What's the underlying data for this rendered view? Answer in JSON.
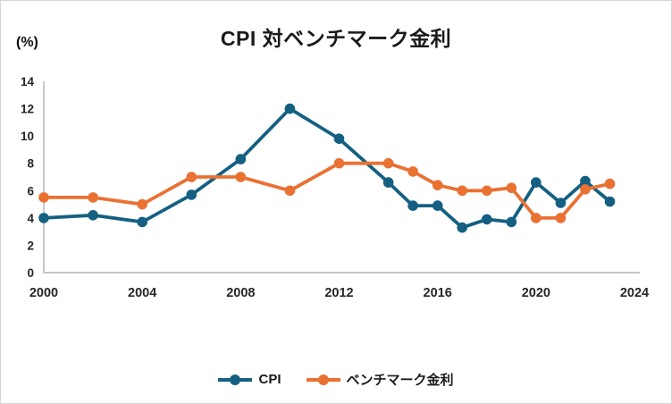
{
  "chart": {
    "title": "CPI 対ベンチマーク金利",
    "y_unit_label": "(%)"
  },
  "colors": {
    "cpi": "#156082",
    "benchmark": "#E97132",
    "axis": "#bfbfbf",
    "tick_text": "#262626"
  },
  "legend": {
    "items": [
      {
        "label": "CPI"
      },
      {
        "label": "ベンチマーク金利"
      }
    ]
  },
  "chart_data": {
    "type": "line",
    "title": "CPI 対ベンチマーク金利",
    "ylabel": "(%)",
    "x": [
      2000,
      2002,
      2004,
      2006,
      2008,
      2010,
      2012,
      2014,
      2015,
      2016,
      2017,
      2018,
      2019,
      2020,
      2021,
      2022,
      2023
    ],
    "series": [
      {
        "name": "CPI",
        "color": "#156082",
        "values": [
          4.0,
          4.2,
          3.7,
          5.7,
          8.3,
          12.0,
          9.8,
          6.6,
          4.9,
          4.9,
          3.3,
          3.9,
          3.7,
          6.6,
          5.1,
          6.7,
          5.2
        ]
      },
      {
        "name": "ベンチマーク金利",
        "color": "#E97132",
        "values": [
          5.5,
          5.5,
          5.0,
          7.0,
          7.0,
          6.0,
          8.0,
          8.0,
          7.4,
          6.4,
          6.0,
          6.0,
          6.2,
          4.0,
          4.0,
          6.1,
          6.5
        ]
      }
    ],
    "xlim": [
      2000,
      2024
    ],
    "ylim": [
      0,
      14
    ],
    "y_ticks": [
      0,
      2,
      4,
      6,
      8,
      10,
      12,
      14
    ],
    "x_ticks": [
      2000,
      2004,
      2008,
      2012,
      2016,
      2020,
      2024
    ],
    "grid": false,
    "legend_position": "bottom",
    "marker": "circle"
  }
}
